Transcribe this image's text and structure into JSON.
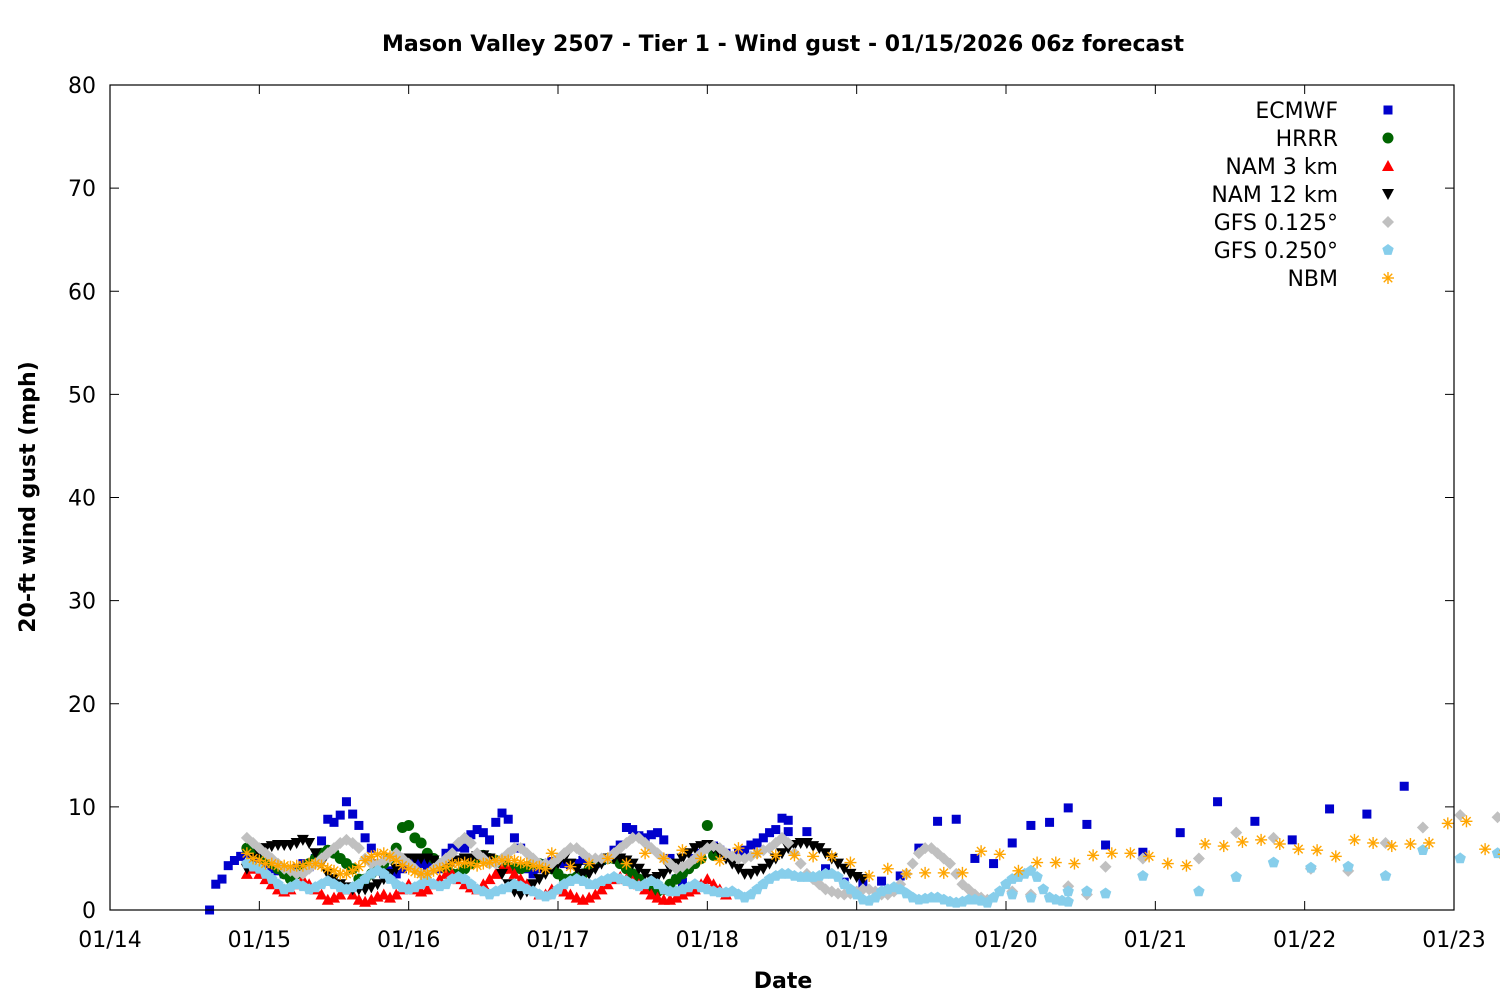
{
  "chart_data": {
    "type": "scatter",
    "title": "Mason Valley 2507 - Tier 1 - Wind gust - 01/15/2026 06z forecast",
    "xlabel": "Date",
    "ylabel": "20-ft wind gust (mph)",
    "xlim": [
      "2026-01-14 00:00",
      "2026-01-23 00:00"
    ],
    "ylim": [
      0,
      80
    ],
    "x_ticks": [
      "01/14",
      "01/15",
      "01/16",
      "01/17",
      "01/18",
      "01/19",
      "01/20",
      "01/21",
      "01/22",
      "01/23"
    ],
    "y_ticks": [
      0,
      10,
      20,
      30,
      40,
      50,
      60,
      70,
      80
    ],
    "grid": false,
    "legend_position": "top-right",
    "series": [
      {
        "name": "ECMWF",
        "marker": "square",
        "color": "#0000cc",
        "segments": [
          {
            "start": "2026-01-14 16:00",
            "step_hours": 1,
            "values": [
              0,
              2.5,
              3,
              4.3,
              4.8,
              5.2,
              5.5,
              5.8,
              5,
              4.5,
              4,
              3.8,
              3.5,
              3.5,
              4,
              4.5,
              4.2,
              5,
              6.7,
              8.8,
              8.5,
              9.2,
              10.5,
              9.3,
              8.2,
              7,
              6,
              4.5,
              3.5,
              3.8,
              3.5,
              4,
              4.3,
              4.5,
              4.5,
              4.3,
              4.2,
              4,
              5.5,
              6,
              6.1,
              6,
              7.3,
              7.8,
              7.5,
              6.8,
              8.5,
              9.4,
              8.8,
              7,
              6,
              4,
              3.5,
              4,
              4.5,
              4.7,
              4.8,
              4.5,
              4.4,
              4.5,
              4.8,
              4.8,
              4.5,
              4.8,
              5,
              5.8,
              6.3,
              8,
              7.8,
              7.2,
              7,
              7.3,
              7.5,
              6.8,
              5,
              3,
              2.7,
              4.2,
              5,
              5.5,
              6,
              6.2,
              5.8,
              5.5,
              5.2,
              5.5,
              5.8,
              6.3,
              6.5,
              7,
              7.5,
              7.8,
              8.9,
              8.7
            ]
          },
          {
            "start": "2026-01-18 13:00",
            "step_hours": 3,
            "values": [
              7.6,
              7.6,
              4,
              2.7,
              2.6,
              2.8,
              3.3,
              6,
              8.6,
              8.8,
              5,
              4.5,
              6.5,
              8.2,
              8.5,
              9.9,
              8.3,
              6.3,
              null,
              5.6,
              null,
              7.5,
              null,
              10.5,
              null,
              8.6,
              null,
              6.8,
              null,
              9.8,
              null,
              9.3,
              null,
              12
            ]
          }
        ]
      },
      {
        "name": "HRRR",
        "marker": "circle",
        "color": "#006400",
        "segments": [
          {
            "start": "2026-01-14 22:00",
            "step_hours": 1,
            "values": [
              6,
              5.8,
              5.5,
              5,
              4.5,
              4,
              3.5,
              3,
              3.5,
              4,
              4.5,
              5,
              5.5,
              5.8,
              5.5,
              5,
              4.5,
              4,
              3,
              3,
              3.5,
              4,
              4.5,
              5,
              6,
              8,
              8.2,
              7,
              6.5,
              5.5,
              5,
              4.5,
              4,
              3.5,
              3.5,
              4,
              4.5,
              5,
              5.3,
              5,
              4.8,
              4.5,
              4.2,
              4,
              4,
              4.2,
              4.5,
              4.5,
              4.2,
              4,
              3.5,
              3,
              3,
              3.2,
              3.5,
              4,
              4.5,
              4.8,
              5,
              5,
              4.5,
              4,
              3.5,
              3,
              2.5,
              2,
              1.8,
              2,
              2.5,
              3,
              3.5,
              4,
              4.5,
              5,
              8.2,
              5.3
            ]
          }
        ]
      },
      {
        "name": "NAM 3 km",
        "marker": "triangle-up",
        "color": "#ff0000",
        "segments": [
          {
            "start": "2026-01-14 22:00",
            "step_hours": 1,
            "values": [
              3.5,
              4,
              3.5,
              3,
              2.5,
              2,
              1.8,
              2,
              2.5,
              3,
              2.5,
              2,
              1.5,
              1,
              1.2,
              1.5,
              2,
              1.5,
              1,
              0.8,
              1,
              1.3,
              1.5,
              1.2,
              1.5,
              2,
              2.5,
              2,
              1.8,
              2,
              2.5,
              3,
              3.5,
              3.5,
              3,
              2.5,
              2.2,
              2,
              2.5,
              3,
              3.5,
              4,
              4,
              3.5,
              3,
              2.5,
              2,
              1.5,
              1.5,
              2,
              2,
              1.8,
              1.5,
              1.2,
              1,
              1.2,
              1.5,
              2,
              2.5,
              3,
              3.2,
              3,
              2.8,
              2.5,
              2,
              1.5,
              1.2,
              1,
              1,
              1.2,
              1.5,
              1.8,
              2,
              2.5,
              3,
              2.5,
              2,
              1.5
            ]
          }
        ]
      },
      {
        "name": "NAM 12 km",
        "marker": "triangle-down",
        "color": "#000000",
        "segments": [
          {
            "start": "2026-01-14 22:00",
            "step_hours": 1,
            "values": [
              4,
              5,
              5.5,
              6,
              6.2,
              6.3,
              6.3,
              6.3,
              6.5,
              6.8,
              6.5,
              5.5,
              4.5,
              3.5,
              3,
              2.5,
              2.2,
              2,
              2,
              2,
              2.2,
              2.5,
              3,
              3.5,
              4,
              4.5,
              5,
              5,
              5,
              5,
              4.8,
              4.5,
              4.5,
              4.6,
              4.8,
              5,
              5,
              5.2,
              5.3,
              5,
              4.5,
              3.5,
              2.5,
              1.8,
              1.5,
              1.8,
              2.5,
              3,
              3.5,
              4,
              4.5,
              5,
              4.5,
              4,
              3.5,
              3.5,
              4,
              4.5,
              5,
              5,
              5,
              4.8,
              4.5,
              4,
              3.5,
              3,
              3.2,
              3.5,
              4,
              4.5,
              5,
              5.5,
              6,
              6.2,
              6.3,
              6,
              5.5,
              5,
              4.5,
              4,
              3.5,
              3.5,
              3.8,
              4,
              4.5,
              5,
              5.5,
              6,
              6.3,
              6.5,
              6.5,
              6.2,
              6,
              5.5,
              5,
              4.5,
              4,
              3.5,
              3.2,
              3
            ]
          }
        ]
      },
      {
        "name": "GFS 0.125°",
        "marker": "diamond",
        "color": "#c0c0c0",
        "segments": [
          {
            "start": "2026-01-14 22:00",
            "step_hours": 1,
            "values": [
              7,
              6.5,
              6,
              5.5,
              5,
              4.5,
              4,
              3.8,
              3.5,
              3.5,
              4,
              4.5,
              5,
              5.5,
              6,
              6.5,
              6.8,
              6.5,
              6,
              5,
              4.5,
              4.5,
              4.8,
              5,
              5.5,
              5,
              4.5,
              4,
              3.5,
              3.5,
              4,
              4.5,
              5,
              5.5,
              6.5,
              7,
              6.5,
              5.5,
              5,
              4.5,
              4.5,
              5,
              5.5,
              6,
              6,
              5.5,
              5,
              4.5,
              4.5,
              4.5,
              5,
              5.5,
              6,
              6,
              5.5,
              5,
              5,
              5,
              5,
              5.5,
              6,
              6.5,
              7,
              7,
              6.5,
              6,
              5.5,
              5,
              4.5,
              4,
              4.2,
              4.5,
              5,
              5.5,
              6,
              6.2,
              6,
              5.5,
              5.2,
              5,
              5,
              5.2,
              5.5,
              5.8,
              6,
              6.5,
              7,
              6.5,
              5.5,
              4.5,
              3.5,
              3,
              2.5,
              2,
              1.8,
              1.6,
              1.5,
              1.6,
              1.8,
              2,
              2,
              1.8,
              1.5,
              1.5,
              1.8,
              2.5,
              3.5,
              4.5,
              5.5,
              6,
              6,
              5.5,
              5,
              4.5,
              3.5,
              2.5,
              2,
              1.5,
              1.2,
              1
            ]
          },
          {
            "start": "2026-01-20 01:00",
            "step_hours": 3,
            "values": [
              1.8,
              1.5,
              null,
              2.3,
              1.5,
              4.2,
              null,
              5,
              null,
              null,
              5,
              null,
              7.5,
              null,
              7,
              null,
              4,
              null,
              3.8,
              null,
              6.5,
              null,
              8,
              null,
              9.2,
              null,
              9,
              null,
              8.5,
              null,
              7.2,
              null,
              3.5,
              null,
              7.8,
              null,
              7.5,
              null,
              2.5,
              null,
              4
            ]
          }
        ]
      },
      {
        "name": "GFS 0.250°",
        "marker": "pentagon",
        "color": "#87ceeb",
        "segments": [
          {
            "start": "2026-01-14 22:00",
            "step_hours": 1,
            "values": [
              4.5,
              4.2,
              4,
              3.5,
              3,
              2.5,
              2,
              2.2,
              2.5,
              2.3,
              2,
              2.2,
              2.5,
              2.8,
              2.5,
              2.2,
              2,
              2.2,
              2.5,
              3,
              3.5,
              3.8,
              3.5,
              3,
              2.5,
              2.2,
              2,
              2.2,
              2.5,
              2.8,
              2.5,
              2.3,
              2.5,
              3,
              3.2,
              3,
              2.5,
              2,
              1.8,
              1.5,
              1.8,
              2,
              2.2,
              2.5,
              2.3,
              2,
              1.8,
              1.5,
              1.3,
              1.5,
              2,
              2.5,
              2.8,
              3,
              2.8,
              2.5,
              2.5,
              2.8,
              3,
              3.2,
              3,
              2.8,
              2.5,
              2.3,
              2.5,
              2.8,
              2.5,
              2,
              1.8,
              1.8,
              2,
              2.2,
              2.5,
              2.2,
              2,
              1.8,
              1.7,
              1.7,
              1.8,
              1.5,
              1.2,
              1.5,
              2,
              2.5,
              3,
              3.3,
              3.5,
              3.5,
              3.3,
              3.2,
              3.2,
              3.2,
              3.3,
              3.5,
              3.5,
              3.2,
              2.5,
              2,
              1.5,
              1,
              0.9,
              1.2,
              1.8,
              2,
              2.2,
              2,
              1.6,
              1.2,
              1,
              1.1,
              1.2,
              1.2,
              1,
              0.8,
              0.7,
              0.8,
              1,
              1,
              0.9,
              0.7,
              1.2,
              1.8,
              2.5,
              3,
              3.2,
              3.5,
              3.8,
              3.2,
              2,
              1.2,
              1,
              0.9,
              0.8
            ]
          },
          {
            "start": "2026-01-20 01:00",
            "step_hours": 3,
            "values": [
              1.5,
              1.2,
              null,
              1.8,
              1.8,
              1.6,
              null,
              3.3,
              null,
              null,
              1.8,
              null,
              3.2,
              null,
              4.6,
              null,
              4.1,
              null,
              4.2,
              null,
              3.3,
              null,
              5.8,
              null,
              5,
              null,
              5.5,
              null,
              5.6,
              null,
              5,
              null,
              4.5,
              null,
              3.5,
              null,
              6,
              null,
              6.5,
              null,
              1.9,
              null,
              2.8
            ]
          }
        ]
      },
      {
        "name": "NBM",
        "marker": "asterisk",
        "color": "#ffa500",
        "segments": [
          {
            "start": "2026-01-14 22:00",
            "step_hours": 1,
            "values": [
              5.5,
              5,
              4.8,
              4.5,
              4.5,
              4.3,
              4.3,
              4.2,
              4.3,
              4.3,
              4.5,
              4.5,
              4.3,
              4,
              3.8,
              3.5,
              3.5,
              3.8,
              4.2,
              4.8,
              5.2,
              5.4,
              5.5,
              5.2,
              4.8,
              4.3,
              4,
              3.7,
              3.5,
              3.5,
              3.8,
              4,
              4.2,
              4.5,
              4.5,
              4.6,
              4.5,
              4.3,
              4.5,
              4.6,
              4.8,
              4.8,
              4.8,
              4.8,
              4.6,
              4.5,
              4.3,
              4.2,
              4
            ]
          },
          {
            "start": "2026-01-16 23:00",
            "step_hours": 3,
            "values": [
              5.5,
              4.2,
              4.5,
              5,
              4.5,
              5.5,
              5,
              5.8,
              5,
              4.8,
              6,
              5.5,
              5.3,
              5.3,
              5.2,
              5.2,
              4.6,
              3.3,
              4,
              3.5,
              3.6,
              3.6,
              3.6,
              5.7,
              5.4,
              3.8,
              4.6,
              4.6,
              4.5,
              5.3,
              5.5,
              5.5,
              5.2,
              4.5,
              4.3,
              6.4,
              6.2,
              6.6,
              6.8,
              6.4,
              5.9,
              5.8,
              5.2,
              6.8,
              6.5,
              6.2,
              6.4,
              6.5,
              8.4,
              8.6,
              5.9,
              5.4
            ]
          }
        ]
      }
    ]
  }
}
